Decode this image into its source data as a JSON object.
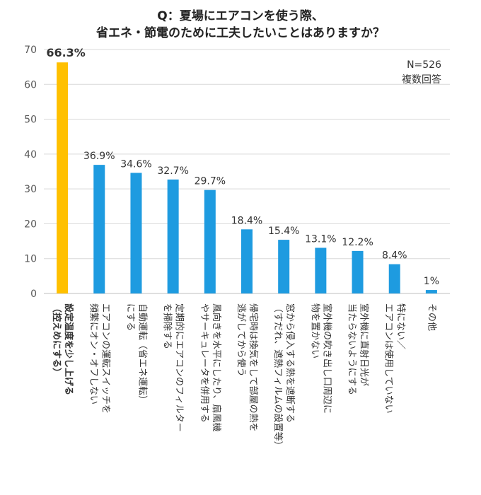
{
  "title": {
    "line1": "Q：夏場にエアコンを使う際、",
    "line2": "省エネ・節電のために工夫したいことはありますか？"
  },
  "notes": {
    "sample": "N=526",
    "answer_type": "複数回答"
  },
  "colors": {
    "highlight": "#FFC000",
    "bar": "#1E9BE0",
    "grid": "#D9D9D9",
    "axis": "#BFBFBF",
    "tick_text": "#595959",
    "label_text": "#333333"
  },
  "chart_data": {
    "type": "bar",
    "orientation": "vertical",
    "ylim": [
      0,
      70
    ],
    "yticks": [
      0,
      10,
      20,
      30,
      40,
      50,
      60,
      70
    ],
    "grid": true,
    "highlight_index": 0,
    "categories": [
      [
        "設定温度を少し上げる",
        "（控えめにする）"
      ],
      [
        "エアコンの運転スイッチを",
        "頻繁にオン・オフしない"
      ],
      [
        "自動運転（省エネ運転）",
        "にする"
      ],
      [
        "定期的にエアコンのフィルター",
        "を掃除する"
      ],
      [
        "風向きを水平にしたり、扇風機",
        "やサーキュレータを併用する"
      ],
      [
        "帰宅時は換気をして部屋の熱を",
        "逃がしてから使う"
      ],
      [
        "窓から侵入する熱を遮断する",
        "（すだれ、遮熱フィルムの設置等）"
      ],
      [
        "室外機の吹き出し口周辺に",
        "物を置かない"
      ],
      [
        "室外機に直射日光が",
        "当たらないようにする"
      ],
      [
        "特にない／",
        "エアコンは使用していない"
      ],
      [
        "その他"
      ]
    ],
    "values": [
      66.3,
      36.9,
      34.6,
      32.7,
      29.7,
      18.4,
      15.4,
      13.1,
      12.2,
      8.4,
      1
    ],
    "value_labels": [
      "66.3%",
      "36.9%",
      "34.6%",
      "32.7%",
      "29.7%",
      "18.4%",
      "15.4%",
      "13.1%",
      "12.2%",
      "8.4%",
      "1%"
    ]
  }
}
